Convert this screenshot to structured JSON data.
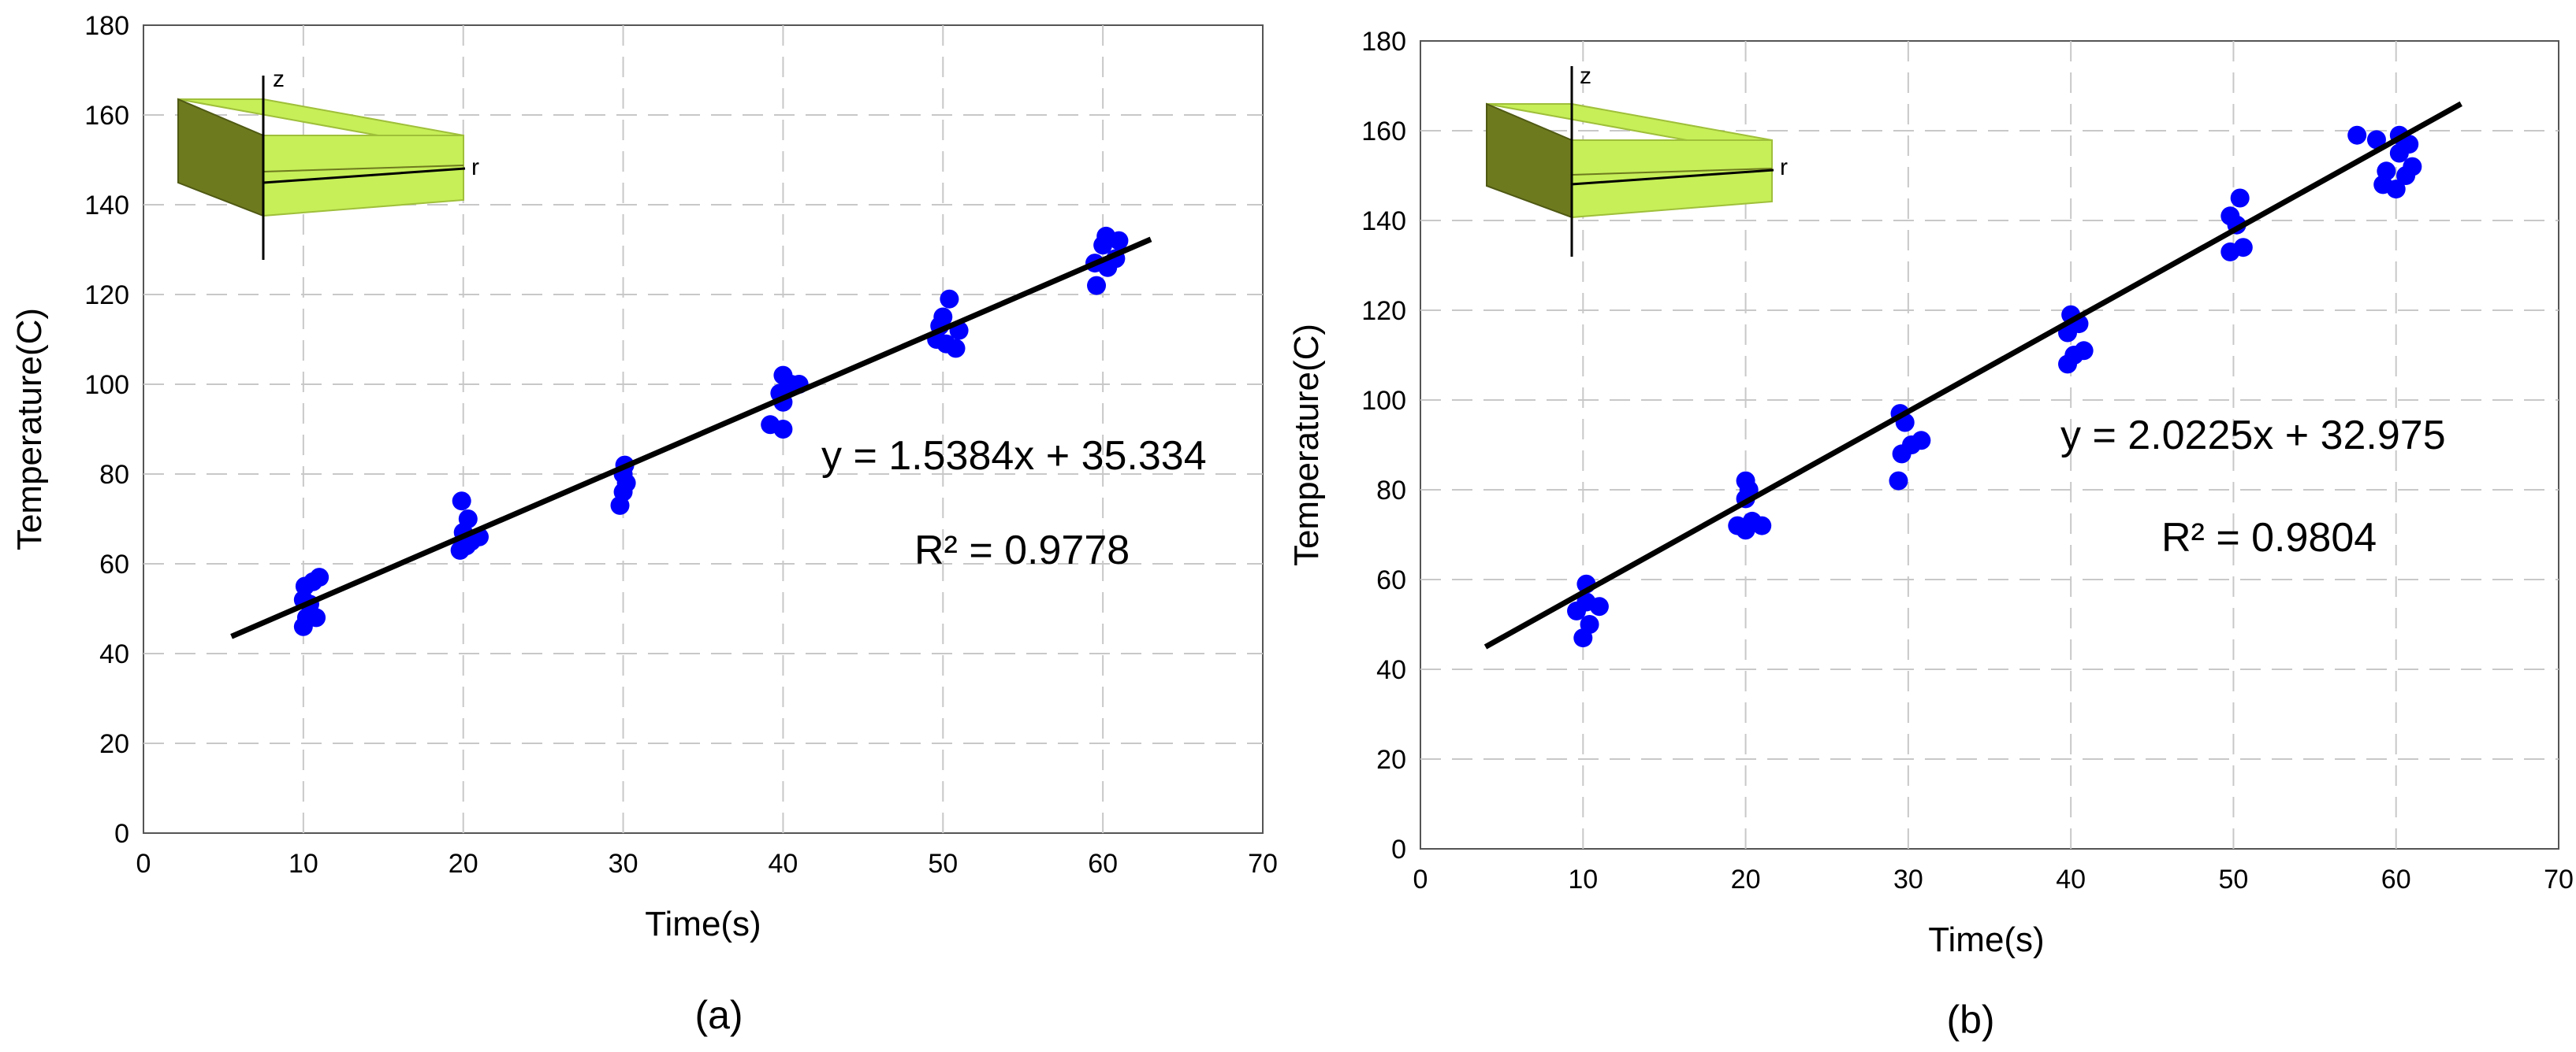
{
  "chart_data": [
    {
      "type": "scatter",
      "panel_label": "(a)",
      "xlabel": "Time(s)",
      "ylabel": "Temperature(C)",
      "xlim": [
        0,
        70
      ],
      "ylim": [
        0,
        180
      ],
      "xticks": [
        0,
        10,
        20,
        30,
        40,
        50,
        60,
        70
      ],
      "yticks": [
        0,
        20,
        40,
        60,
        80,
        100,
        120,
        140,
        160,
        180
      ],
      "grid": true,
      "series": [
        {
          "type": "scatter",
          "color": "#0000ff",
          "points": [
            [
              10,
              46
            ],
            [
              10.2,
              48
            ],
            [
              10.8,
              48
            ],
            [
              10,
              52
            ],
            [
              10.4,
              51
            ],
            [
              10.1,
              55
            ],
            [
              10.6,
              56
            ],
            [
              11,
              57
            ],
            [
              19.8,
              63
            ],
            [
              20.2,
              64
            ],
            [
              20.5,
              65
            ],
            [
              21,
              66
            ],
            [
              20,
              67
            ],
            [
              20.3,
              70
            ],
            [
              19.9,
              74
            ],
            [
              29.8,
              73
            ],
            [
              30,
              76
            ],
            [
              30.2,
              78
            ],
            [
              30,
              80
            ],
            [
              30.1,
              82
            ],
            [
              39.2,
              91
            ],
            [
              40,
              90
            ],
            [
              40,
              96
            ],
            [
              39.8,
              98
            ],
            [
              40.5,
              100
            ],
            [
              40,
              102
            ],
            [
              41,
              100
            ],
            [
              49.6,
              110
            ],
            [
              50.2,
              109
            ],
            [
              50.8,
              108
            ],
            [
              49.8,
              113
            ],
            [
              51,
              112
            ],
            [
              50,
              115
            ],
            [
              50.4,
              119
            ],
            [
              59.6,
              122
            ],
            [
              59.5,
              127
            ],
            [
              60.3,
              126
            ],
            [
              60.8,
              128
            ],
            [
              60,
              131
            ],
            [
              61,
              132
            ],
            [
              60.2,
              133
            ]
          ]
        },
        {
          "type": "line",
          "color": "#000000",
          "x": [
            5.5,
            63
          ],
          "y": [
            43.8,
            132.3
          ]
        }
      ],
      "annotations": [
        "y = 1.5384x + 35.334",
        "R² = 0.9778"
      ],
      "inset": {
        "axis_labels": [
          "z",
          "r"
        ],
        "fill_color": "#c6ef58",
        "side_color": "#6e7a1e"
      }
    },
    {
      "type": "scatter",
      "panel_label": "(b)",
      "xlabel": "Time(s)",
      "ylabel": "Temperature(C)",
      "xlim": [
        0,
        70
      ],
      "ylim": [
        0,
        180
      ],
      "xticks": [
        0,
        10,
        20,
        30,
        40,
        50,
        60,
        70
      ],
      "yticks": [
        0,
        20,
        40,
        60,
        80,
        100,
        120,
        140,
        160,
        180
      ],
      "grid": true,
      "series": [
        {
          "type": "scatter",
          "color": "#0000ff",
          "points": [
            [
              9.6,
              53
            ],
            [
              10,
              47
            ],
            [
              10.4,
              50
            ],
            [
              10.2,
              55
            ],
            [
              11,
              54
            ],
            [
              10.2,
              59
            ],
            [
              19.5,
              72
            ],
            [
              20,
              71
            ],
            [
              20.4,
              73
            ],
            [
              21,
              72
            ],
            [
              20,
              78
            ],
            [
              20.2,
              80
            ],
            [
              20,
              82
            ],
            [
              29.4,
              82
            ],
            [
              29.6,
              88
            ],
            [
              30.2,
              90
            ],
            [
              30.8,
              91
            ],
            [
              29.8,
              95
            ],
            [
              29.5,
              97
            ],
            [
              39.8,
              108
            ],
            [
              40.2,
              110
            ],
            [
              40.8,
              111
            ],
            [
              39.8,
              115
            ],
            [
              40.5,
              117
            ],
            [
              40,
              119
            ],
            [
              49.8,
              133
            ],
            [
              50.6,
              134
            ],
            [
              50.2,
              139
            ],
            [
              49.8,
              141
            ],
            [
              50.4,
              145
            ],
            [
              57.6,
              159
            ],
            [
              58.8,
              158
            ],
            [
              59.2,
              148
            ],
            [
              60,
              147
            ],
            [
              59.4,
              151
            ],
            [
              60.6,
              150
            ],
            [
              61,
              152
            ],
            [
              60.2,
              155
            ],
            [
              60.8,
              157
            ],
            [
              60.2,
              159
            ]
          ]
        },
        {
          "type": "line",
          "color": "#000000",
          "x": [
            4,
            64
          ],
          "y": [
            45,
            166
          ]
        }
      ],
      "annotations": [
        "y = 2.0225x + 32.975",
        "R² = 0.9804"
      ],
      "inset": {
        "axis_labels": [
          "z",
          "r"
        ],
        "fill_color": "#c6ef58",
        "side_color": "#6e7a1e"
      }
    }
  ]
}
